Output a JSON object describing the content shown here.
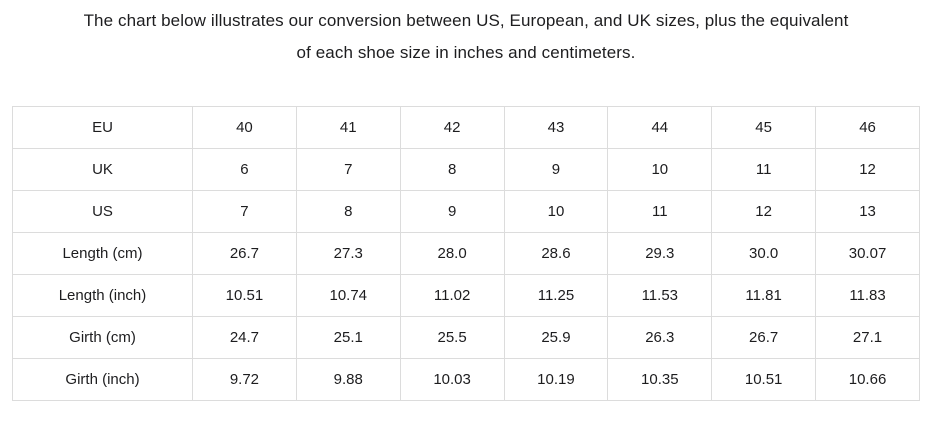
{
  "title": {
    "line1": "The chart below illustrates our conversion between US, European, and UK sizes, plus the equivalent",
    "line2": "of each shoe size in inches and centimeters."
  },
  "table": {
    "rows": [
      {
        "label": "EU",
        "values": [
          "40",
          "41",
          "42",
          "43",
          "44",
          "45",
          "46"
        ]
      },
      {
        "label": "UK",
        "values": [
          "6",
          "7",
          "8",
          "9",
          "10",
          "11",
          "12"
        ]
      },
      {
        "label": "US",
        "values": [
          "7",
          "8",
          "9",
          "10",
          "11",
          "12",
          "13"
        ]
      },
      {
        "label": "Length (cm)",
        "values": [
          "26.7",
          "27.3",
          "28.0",
          "28.6",
          "29.3",
          "30.0",
          "30.07"
        ]
      },
      {
        "label": "Length (inch)",
        "values": [
          "10.51",
          "10.74",
          "11.02",
          "11.25",
          "11.53",
          "11.81",
          "11.83"
        ]
      },
      {
        "label": "Girth (cm)",
        "values": [
          "24.7",
          "25.1",
          "25.5",
          "25.9",
          "26.3",
          "26.7",
          "27.1"
        ]
      },
      {
        "label": "Girth (inch)",
        "values": [
          "9.72",
          "9.88",
          "10.03",
          "10.19",
          "10.35",
          "10.51",
          "10.66"
        ]
      }
    ]
  },
  "colors": {
    "text": "#1d1d1f",
    "border": "#dcdcdc",
    "background": "#ffffff"
  },
  "chart_data": {
    "type": "table",
    "title": "Shoe size conversion chart (US / EU / UK with length and girth)",
    "row_headers": [
      "EU",
      "UK",
      "US",
      "Length (cm)",
      "Length (inch)",
      "Girth (cm)",
      "Girth (inch)"
    ],
    "rows": [
      [
        40,
        41,
        42,
        43,
        44,
        45,
        46
      ],
      [
        6,
        7,
        8,
        9,
        10,
        11,
        12
      ],
      [
        7,
        8,
        9,
        10,
        11,
        12,
        13
      ],
      [
        26.7,
        27.3,
        28.0,
        28.6,
        29.3,
        30.0,
        30.07
      ],
      [
        10.51,
        10.74,
        11.02,
        11.25,
        11.53,
        11.81,
        11.83
      ],
      [
        24.7,
        25.1,
        25.5,
        25.9,
        26.3,
        26.7,
        27.1
      ],
      [
        9.72,
        9.88,
        10.03,
        10.19,
        10.35,
        10.51,
        10.66
      ]
    ],
    "layout_hints": {
      "grid": true,
      "first_column_is_row_label": true,
      "cell_alignment": "center"
    }
  }
}
